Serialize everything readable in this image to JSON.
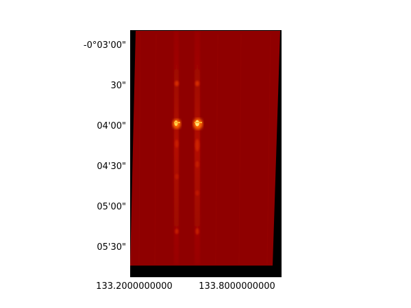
{
  "image": {
    "frame_color": "#000000",
    "field_color": "#8f0000",
    "streak_color": "#b81000",
    "hotspot_color": "#ffd24a",
    "colormap": "hot"
  },
  "axes": {
    "y_ticks": [
      "-0°03'00\"",
      "30\"",
      "04'00\"",
      "04'30\"",
      "05'00\"",
      "05'30\""
    ],
    "x_ticks": [
      "133.2000000000",
      "133.8000000000"
    ]
  }
}
